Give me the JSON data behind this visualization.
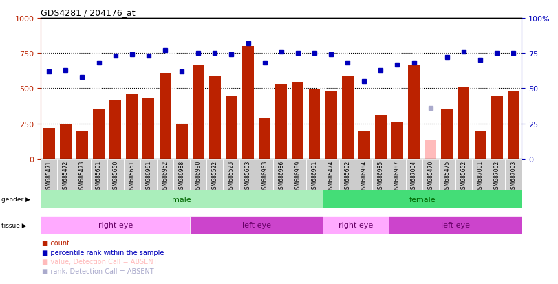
{
  "title": "GDS4281 / 204176_at",
  "samples": [
    "GSM685471",
    "GSM685472",
    "GSM685473",
    "GSM685601",
    "GSM685650",
    "GSM685651",
    "GSM686961",
    "GSM686962",
    "GSM686988",
    "GSM686990",
    "GSM685522",
    "GSM685523",
    "GSM685603",
    "GSM686963",
    "GSM686986",
    "GSM686989",
    "GSM686991",
    "GSM685474",
    "GSM685602",
    "GSM686984",
    "GSM686985",
    "GSM686987",
    "GSM687004",
    "GSM685470",
    "GSM685475",
    "GSM685652",
    "GSM687001",
    "GSM687002",
    "GSM687003"
  ],
  "bar_values": [
    220,
    245,
    195,
    355,
    415,
    460,
    430,
    610,
    248,
    665,
    585,
    445,
    800,
    285,
    530,
    545,
    495,
    475,
    590,
    195,
    310,
    260,
    665,
    130,
    355,
    510,
    200,
    445,
    475
  ],
  "bar_absent": [
    false,
    false,
    false,
    false,
    false,
    false,
    false,
    false,
    false,
    false,
    false,
    false,
    false,
    false,
    false,
    false,
    false,
    false,
    false,
    false,
    false,
    false,
    false,
    true,
    false,
    false,
    false,
    false,
    false
  ],
  "dot_values": [
    62,
    63,
    58,
    68,
    73,
    74,
    73,
    77,
    62,
    75,
    75,
    74,
    82,
    68,
    76,
    75,
    75,
    74,
    68,
    55,
    63,
    67,
    68,
    36,
    72,
    76,
    70,
    75,
    75
  ],
  "dot_absent": [
    false,
    false,
    false,
    false,
    false,
    false,
    false,
    false,
    false,
    false,
    false,
    false,
    false,
    false,
    false,
    false,
    false,
    false,
    false,
    false,
    false,
    false,
    false,
    true,
    false,
    false,
    false,
    false,
    false
  ],
  "gender_groups": [
    {
      "label": "male",
      "start": 0,
      "end": 17,
      "color": "#aaeebb"
    },
    {
      "label": "female",
      "start": 17,
      "end": 29,
      "color": "#44dd77"
    }
  ],
  "tissue_groups": [
    {
      "label": "right eye",
      "start": 0,
      "end": 9,
      "color": "#ffaaff"
    },
    {
      "label": "left eye",
      "start": 9,
      "end": 17,
      "color": "#cc44cc"
    },
    {
      "label": "right eye",
      "start": 17,
      "end": 21,
      "color": "#ffaaff"
    },
    {
      "label": "left eye",
      "start": 21,
      "end": 29,
      "color": "#cc44cc"
    }
  ],
  "bar_color": "#bb2200",
  "bar_absent_color": "#ffbbbb",
  "dot_color": "#0000bb",
  "dot_absent_color": "#aaaacc",
  "ylim_left": [
    0,
    1000
  ],
  "ylim_right": [
    0,
    100
  ],
  "yticks_left": [
    0,
    250,
    500,
    750,
    1000
  ],
  "yticks_right": [
    0,
    25,
    50,
    75,
    100
  ],
  "ytick_labels_right": [
    "0",
    "25",
    "50",
    "75",
    "100%"
  ],
  "hlines": [
    250,
    500,
    750
  ],
  "legend_items": [
    {
      "label": "count",
      "color": "#bb2200"
    },
    {
      "label": "percentile rank within the sample",
      "color": "#0000bb"
    },
    {
      "label": "value, Detection Call = ABSENT",
      "color": "#ffbbbb"
    },
    {
      "label": "rank, Detection Call = ABSENT",
      "color": "#aaaacc"
    }
  ]
}
